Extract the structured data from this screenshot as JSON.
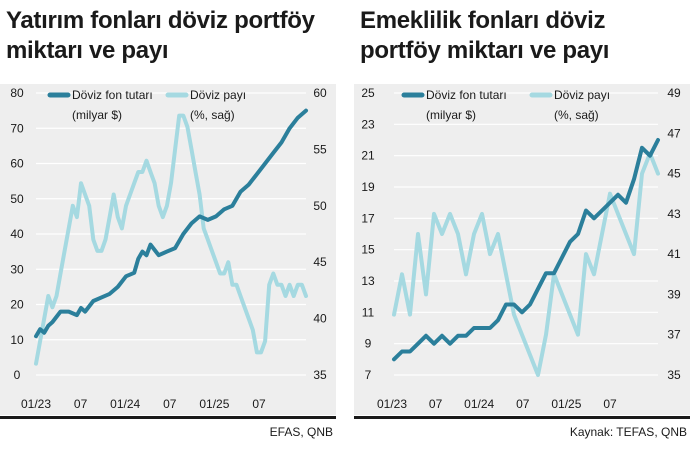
{
  "colors": {
    "fx_amount": "#2b7f9b",
    "fx_share": "#a5d9e1",
    "background": "#eeeeee",
    "grid": "#ffffff"
  },
  "left": {
    "title": "Yatırım fonları döviz portföy miktarı ve payı",
    "source": "EFAS, QNB",
    "chart_data": {
      "type": "line",
      "x_tick_labels": [
        "01/23",
        "07",
        "01/24",
        "07",
        "01/25",
        "07"
      ],
      "xlim": [
        0,
        33
      ],
      "left_axis": {
        "label": "Döviz fon tutarı (milyar $)",
        "ticks": [
          0,
          10,
          20,
          30,
          40,
          50,
          60,
          70,
          80
        ],
        "ylim": [
          0,
          80
        ]
      },
      "right_axis": {
        "label": "Döviz payı (%, sağ)",
        "ticks": [
          35,
          40,
          45,
          50,
          55,
          60
        ],
        "ylim": [
          35,
          60
        ]
      },
      "grid": true,
      "legend": "top",
      "series": [
        {
          "name": "Döviz fon tutarı",
          "unit": "(milyar $)",
          "axis": "left",
          "x": [
            0,
            0.5,
            1,
            1.5,
            2,
            3,
            4,
            5,
            5.5,
            6,
            7,
            8,
            9,
            10,
            11,
            12,
            12.5,
            13,
            13.5,
            14,
            15,
            16,
            17,
            18,
            19,
            20,
            21,
            22,
            23,
            24,
            25,
            26,
            27,
            28,
            29,
            30,
            31,
            32,
            33
          ],
          "y": [
            11,
            13,
            12,
            14,
            15,
            18,
            18,
            17,
            19,
            18,
            21,
            22,
            23,
            25,
            28,
            29,
            33,
            35,
            34,
            37,
            34,
            35,
            36,
            40,
            43,
            45,
            44,
            45,
            47,
            48,
            52,
            54,
            57,
            60,
            63,
            66,
            70,
            73,
            75
          ]
        },
        {
          "name": "Döviz payı",
          "unit": "(%, sağ)",
          "axis": "right",
          "x": [
            0,
            0.5,
            1,
            1.5,
            2,
            2.5,
            3,
            3.5,
            4,
            4.5,
            5,
            5.5,
            6,
            6.5,
            7,
            7.5,
            8,
            8.5,
            9,
            9.5,
            10,
            10.5,
            11,
            11.5,
            12,
            12.5,
            13,
            13.5,
            14,
            14.5,
            15,
            15.5,
            16,
            16.5,
            17,
            17.5,
            18,
            18.5,
            19,
            19.5,
            20,
            20.5,
            21,
            21.5,
            22,
            22.5,
            23,
            23.5,
            24,
            24.5,
            25,
            25.5,
            26,
            26.5,
            27,
            27.5,
            28,
            28.5,
            29,
            29.5,
            30,
            30.5,
            31,
            31.5,
            32,
            32.5,
            33
          ],
          "y": [
            36,
            38,
            40,
            42,
            41,
            42,
            44,
            46,
            48,
            50,
            49,
            52,
            51,
            50,
            47,
            46,
            46,
            47,
            49,
            51,
            49,
            48,
            50,
            51,
            52,
            53,
            53,
            54,
            53,
            52,
            50,
            49,
            50,
            52,
            55,
            58,
            58,
            57,
            55,
            53,
            51,
            48,
            47,
            46,
            45,
            44,
            44,
            45,
            43,
            43,
            42,
            41,
            40,
            39,
            37,
            37,
            38,
            43,
            44,
            43,
            43,
            42,
            43,
            42,
            43,
            43,
            42
          ]
        }
      ]
    }
  },
  "right": {
    "title": "Emeklilik fonları döviz portföy miktarı ve payı",
    "source": "Kaynak: TEFAS, QNB",
    "chart_data": {
      "type": "line",
      "x_tick_labels": [
        "01/23",
        "07",
        "01/24",
        "07",
        "01/25",
        "07"
      ],
      "xlim": [
        0,
        33
      ],
      "left_axis": {
        "label": "Döviz fon tutarı (milyar $)",
        "ticks": [
          7,
          9,
          11,
          13,
          15,
          17,
          19,
          21,
          23,
          25
        ],
        "ylim": [
          7,
          25
        ]
      },
      "right_axis": {
        "label": "Döviz payı (%, sağ)",
        "ticks": [
          35,
          37,
          39,
          41,
          43,
          45,
          47,
          49
        ],
        "ylim": [
          35,
          49
        ]
      },
      "grid": true,
      "legend": "top",
      "series": [
        {
          "name": "Döviz fon tutarı",
          "unit": "(milyar $)",
          "axis": "left",
          "x": [
            0,
            1,
            2,
            3,
            4,
            5,
            6,
            7,
            8,
            9,
            10,
            11,
            12,
            13,
            14,
            15,
            16,
            17,
            18,
            19,
            20,
            21,
            22,
            23,
            24,
            25,
            26,
            27,
            28,
            29,
            30,
            31,
            32,
            33
          ],
          "y": [
            8,
            8.5,
            8.5,
            9,
            9.5,
            9,
            9.5,
            9,
            9.5,
            9.5,
            10,
            10,
            10,
            10.5,
            11.5,
            11.5,
            11,
            11.5,
            12.5,
            13.5,
            13.5,
            14.5,
            15.5,
            16,
            17.5,
            17,
            17.5,
            18,
            18.5,
            18,
            19.5,
            21.5,
            21,
            22
          ]
        },
        {
          "name": "Döviz payı",
          "unit": "(%, sağ)",
          "axis": "right",
          "x": [
            0,
            1,
            2,
            3,
            4,
            5,
            6,
            7,
            8,
            9,
            10,
            11,
            12,
            13,
            14,
            15,
            16,
            17,
            18,
            19,
            20,
            21,
            22,
            23,
            24,
            25,
            26,
            27,
            28,
            29,
            30,
            31,
            32,
            33
          ],
          "y": [
            38,
            40,
            38,
            42,
            39,
            43,
            42,
            43,
            42,
            40,
            42,
            43,
            41,
            42,
            40,
            38,
            37,
            36,
            35,
            37,
            40,
            39,
            38,
            37,
            41,
            40,
            42,
            44,
            43,
            42,
            41,
            45,
            46,
            45
          ]
        }
      ]
    }
  }
}
